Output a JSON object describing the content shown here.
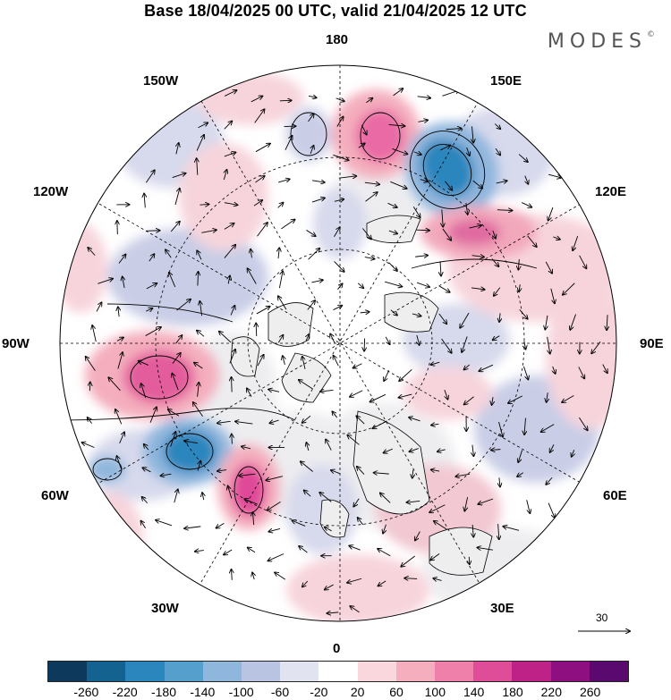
{
  "title": "Base 18/04/2025 00 UTC, valid 21/04/2025 12 UTC",
  "logo": "MODES",
  "logo_mark": "©",
  "longitude_labels": {
    "lon_180": "180",
    "lon_150e": "150E",
    "lon_120e": "120E",
    "lon_90e": "90E",
    "lon_60e": "60E",
    "lon_30e": "30E",
    "lon_0": "0",
    "lon_30w": "30W",
    "lon_60w": "60W",
    "lon_90w": "90W",
    "lon_120w": "120W",
    "lon_150w": "150W"
  },
  "reference_vector": "30",
  "colorbar": {
    "ticks": [
      "-260",
      "-220",
      "-180",
      "-140",
      "-100",
      "-60",
      "-20",
      "20",
      "60",
      "100",
      "140",
      "180",
      "220",
      "260"
    ],
    "colors": [
      "#0d3a5c",
      "#13628f",
      "#2a86bd",
      "#559fcc",
      "#8fb6dd",
      "#b9c3e2",
      "#e2e3f1",
      "#ffffff",
      "#f9d7dd",
      "#f4aebd",
      "#ee80a9",
      "#df4c97",
      "#bf2286",
      "#8e1080",
      "#5a0a6e"
    ]
  },
  "colors": {
    "coast": "#000000",
    "land_grey": "#efefef",
    "grid": "#000000"
  }
}
